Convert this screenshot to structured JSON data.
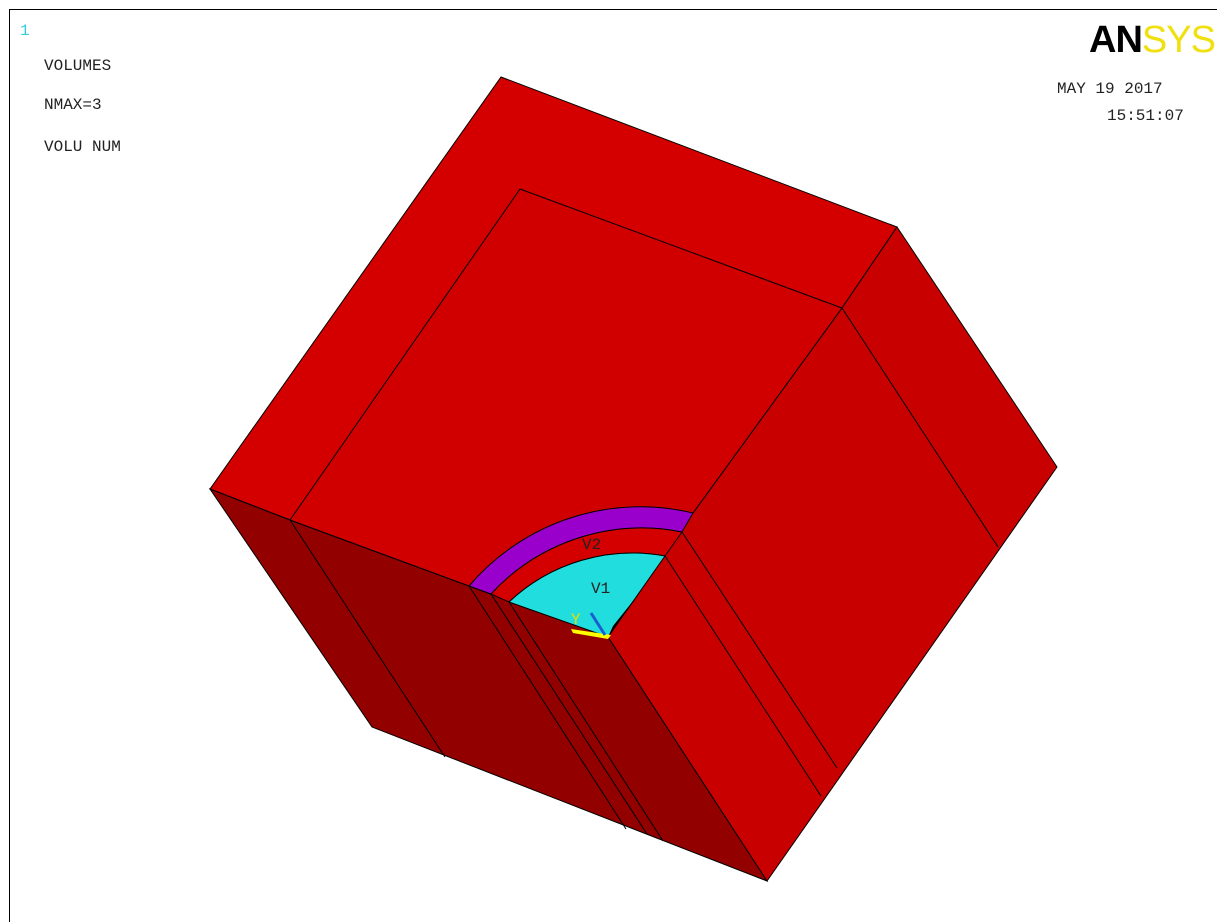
{
  "window_number": "1",
  "header": {
    "line1": "VOLUMES",
    "line2": "NMAX=3",
    "line3": "VOLU NUM"
  },
  "logo": {
    "part1": "AN",
    "part2": "SYS"
  },
  "timestamp": {
    "date": "MAY 19 2017",
    "time": "15:51:07"
  },
  "volume_labels": {
    "v1": "V1",
    "v2": "V2"
  },
  "triad": {
    "y_label": "Y"
  },
  "colors": {
    "outer_volume": "#d40000",
    "side_dark": "#8f0000",
    "side_mid": "#c40000",
    "ring_purple": "#9900cc",
    "inner_cyan": "#22dddd",
    "triad_yellow": "#ffff00",
    "logo_yellow": "#f0e010"
  }
}
